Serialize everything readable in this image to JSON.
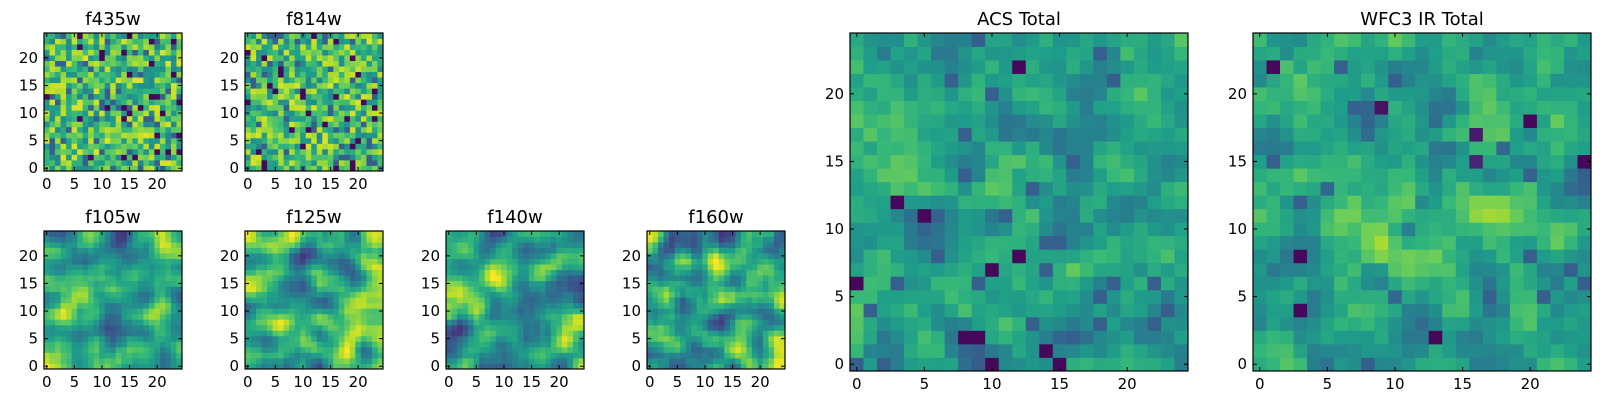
{
  "chart_data": [
    {
      "type": "heatmap",
      "title": "f435w",
      "colormap": "viridis",
      "grid": false,
      "size": 25,
      "xlim": [
        0,
        24
      ],
      "ylim": [
        0,
        24
      ],
      "xticks": [
        0,
        5,
        10,
        15,
        20
      ],
      "yticks": [
        0,
        5,
        10,
        15,
        20
      ],
      "texture": "fine_noise"
    },
    {
      "type": "heatmap",
      "title": "f814w",
      "colormap": "viridis",
      "grid": false,
      "size": 25,
      "xlim": [
        0,
        24
      ],
      "ylim": [
        0,
        24
      ],
      "xticks": [
        0,
        5,
        10,
        15,
        20
      ],
      "yticks": [
        0,
        5,
        10,
        15,
        20
      ],
      "texture": "fine_noise"
    },
    {
      "type": "heatmap",
      "title": "f105w",
      "colormap": "viridis",
      "grid": false,
      "size": 25,
      "xlim": [
        0,
        24
      ],
      "ylim": [
        0,
        24
      ],
      "xticks": [
        0,
        5,
        10,
        15,
        20
      ],
      "yticks": [
        0,
        5,
        10,
        15,
        20
      ],
      "texture": "smooth_noise"
    },
    {
      "type": "heatmap",
      "title": "f125w",
      "colormap": "viridis",
      "grid": false,
      "size": 25,
      "xlim": [
        0,
        24
      ],
      "ylim": [
        0,
        24
      ],
      "xticks": [
        0,
        5,
        10,
        15,
        20
      ],
      "yticks": [
        0,
        5,
        10,
        15,
        20
      ],
      "texture": "smooth_noise"
    },
    {
      "type": "heatmap",
      "title": "f140w",
      "colormap": "viridis",
      "grid": false,
      "size": 25,
      "xlim": [
        0,
        24
      ],
      "ylim": [
        0,
        24
      ],
      "xticks": [
        0,
        5,
        10,
        15,
        20
      ],
      "yticks": [
        0,
        5,
        10,
        15,
        20
      ],
      "texture": "smooth_noise"
    },
    {
      "type": "heatmap",
      "title": "f160w",
      "colormap": "viridis",
      "grid": false,
      "size": 25,
      "xlim": [
        0,
        24
      ],
      "ylim": [
        0,
        24
      ],
      "xticks": [
        0,
        5,
        10,
        15,
        20
      ],
      "yticks": [
        0,
        5,
        10,
        15,
        20
      ],
      "texture": "smooth_noise"
    },
    {
      "type": "heatmap",
      "title": "ACS Total",
      "colormap": "viridis",
      "grid": false,
      "size": 25,
      "xlim": [
        0,
        24
      ],
      "ylim": [
        0,
        24
      ],
      "xticks": [
        0,
        5,
        10,
        15,
        20
      ],
      "yticks": [
        0,
        5,
        10,
        15,
        20
      ],
      "texture": "coarse_noise"
    },
    {
      "type": "heatmap",
      "title": "WFC3 IR Total",
      "colormap": "viridis",
      "grid": false,
      "size": 25,
      "xlim": [
        0,
        24
      ],
      "ylim": [
        0,
        24
      ],
      "xticks": [
        0,
        5,
        10,
        15,
        20
      ],
      "yticks": [
        0,
        5,
        10,
        15,
        20
      ],
      "texture": "coarse_noise_bright_center"
    }
  ]
}
